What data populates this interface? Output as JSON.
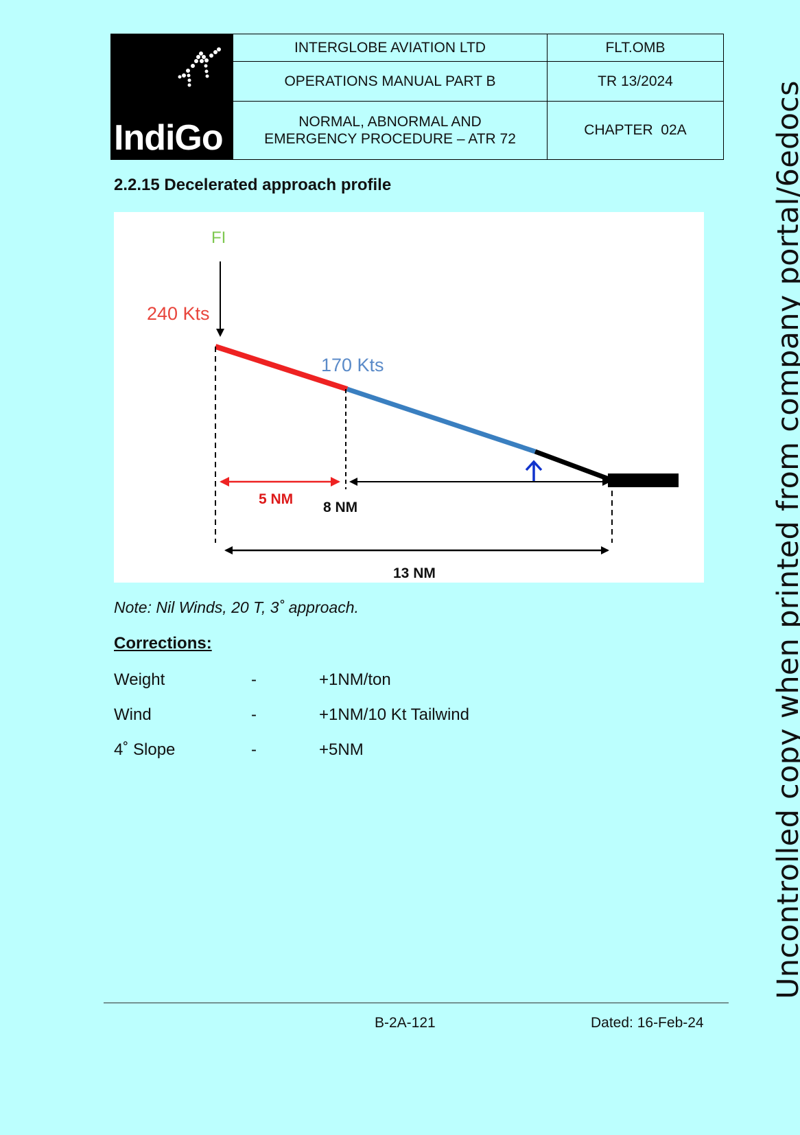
{
  "header": {
    "logo_text": "IndiGo",
    "company": "INTERGLOBE AVIATION LTD",
    "doc_code": "FLT.OMB",
    "manual": "OPERATIONS MANUAL PART B",
    "revision": "TR 13/2024",
    "procedure_line1": "NORMAL, ABNORMAL AND",
    "procedure_line2": "EMERGENCY PROCEDURE – ATR 72",
    "chapter": "CHAPTER  02A"
  },
  "section": {
    "title": "2.2.15 Decelerated approach profile"
  },
  "diagram": {
    "fi_label": "FI",
    "speed_initial": "240 Kts",
    "speed_mid": "170 Kts",
    "dist_short": "5 NM",
    "dist_mid": "8 NM",
    "dist_total": "13 NM",
    "colors": {
      "first_segment": "#ee2222",
      "second_segment": "#3a7fc0",
      "final_segment": "#000000",
      "fi_label": "#7ec850",
      "marker_arrow": "#1133cc"
    }
  },
  "note": "Note: Nil Winds, 20 T, 3˚ approach.",
  "corrections": {
    "title": "Corrections:",
    "rows": [
      {
        "name": "Weight",
        "dash": "-",
        "value": "+1NM/ton"
      },
      {
        "name": "Wind",
        "dash": "-",
        "value": "+1NM/10 Kt Tailwind"
      },
      {
        "name": "4˚ Slope",
        "dash": "-",
        "value": "+5NM"
      }
    ]
  },
  "footer": {
    "page": "B-2A-121",
    "dated": "Dated: 16-Feb-24"
  },
  "watermark": "Uncontrolled copy when printed from company portal/6edocs"
}
